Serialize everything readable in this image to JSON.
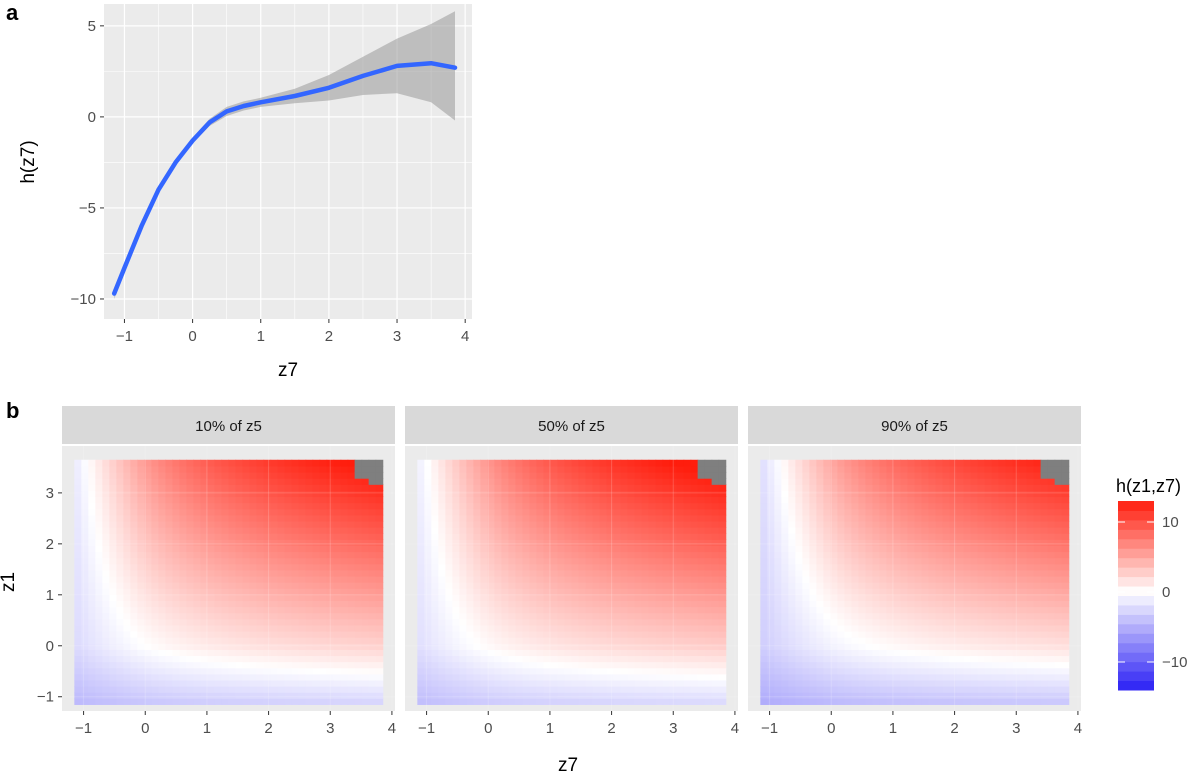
{
  "chart_data": [
    {
      "panel_label": "a",
      "type": "line",
      "xlabel": "z7",
      "ylabel": "h(z7)",
      "xlim": [
        -1.3,
        4.1
      ],
      "ylim": [
        -11.1,
        6.2
      ],
      "xticks": [
        -1,
        0,
        1,
        2,
        3,
        4
      ],
      "yticks": [
        -10,
        -5,
        0,
        5
      ],
      "xtick_labels": [
        "−1",
        "0",
        "1",
        "2",
        "3",
        "4"
      ],
      "ytick_labels": [
        "−10",
        "−5",
        "0",
        "5"
      ],
      "grid": true,
      "series": [
        {
          "color": "#3366ff",
          "ribbon_color": "#999999",
          "x": [
            -1.15,
            -1.0,
            -0.75,
            -0.5,
            -0.25,
            0.0,
            0.25,
            0.5,
            0.75,
            1.0,
            1.5,
            2.0,
            2.5,
            3.0,
            3.5,
            3.85
          ],
          "y": [
            -9.7,
            -8.3,
            -6.0,
            -4.0,
            -2.5,
            -1.3,
            -0.3,
            0.3,
            0.6,
            0.8,
            1.15,
            1.6,
            2.25,
            2.8,
            2.95,
            2.7
          ],
          "lower": [
            -10.0,
            -8.55,
            -6.2,
            -4.15,
            -2.65,
            -1.45,
            -0.5,
            0.05,
            0.35,
            0.55,
            0.75,
            0.9,
            1.2,
            1.3,
            0.8,
            -0.2
          ],
          "upper": [
            -9.4,
            -8.05,
            -5.8,
            -3.85,
            -2.35,
            -1.15,
            -0.1,
            0.55,
            0.85,
            1.05,
            1.55,
            2.3,
            3.3,
            4.3,
            5.1,
            5.8
          ]
        }
      ]
    },
    {
      "panel_label": "b",
      "type": "heatmap",
      "xlabel": "z7",
      "ylabel": "z1",
      "xlim": [
        -1.35,
        4.05
      ],
      "ylim": [
        -1.28,
        3.92
      ],
      "xticks": [
        -1,
        0,
        1,
        2,
        3,
        4
      ],
      "yticks": [
        -1,
        0,
        1,
        2,
        3
      ],
      "xtick_labels": [
        "−1",
        "0",
        "1",
        "2",
        "3",
        "4"
      ],
      "ytick_labels": [
        "−1",
        "0",
        "1",
        "2",
        "3"
      ],
      "grid": true,
      "data_extent": {
        "x": [
          -1.15,
          3.85
        ],
        "y": [
          -1.15,
          3.65
        ]
      },
      "facets": [
        {
          "label": "10% of z5",
          "z5_quantile": 0.1
        },
        {
          "label": "50% of z5",
          "z5_quantile": 0.5
        },
        {
          "label": "90% of z5",
          "z5_quantile": 0.9
        }
      ],
      "legend": {
        "title": "h(z1,z7)",
        "position": "right",
        "breaks": [
          10,
          0,
          -10
        ],
        "break_labels": [
          "10",
          "0",
          "−10"
        ],
        "range": [
          -14,
          13
        ],
        "low_color": "#2a1ff5",
        "mid_color": "#ffffff",
        "high_color": "#ff1d0d",
        "missing_color": "#7f7f7f"
      }
    }
  ]
}
